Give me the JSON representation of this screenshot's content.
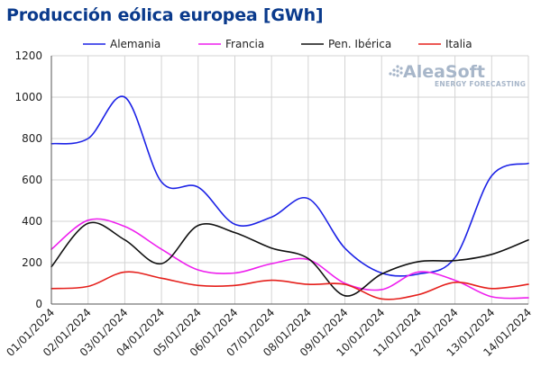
{
  "chart_data": {
    "type": "line",
    "title": "Producción eólica europea [GWh]",
    "xlabel": "",
    "ylabel": "",
    "ylim": [
      0,
      1200
    ],
    "yticks": [
      0,
      200,
      400,
      600,
      800,
      1000,
      1200
    ],
    "grid": true,
    "legend_position": "top",
    "categories": [
      "01/01/2024",
      "02/01/2024",
      "03/01/2024",
      "04/01/2024",
      "05/01/2024",
      "06/01/2024",
      "07/01/2024",
      "08/01/2024",
      "09/01/2024",
      "10/01/2024",
      "11/01/2024",
      "12/01/2024",
      "13/01/2024",
      "14/01/2024"
    ],
    "series": [
      {
        "name": "Alemania",
        "color": "#1c22e6",
        "values": [
          775,
          800,
          1000,
          590,
          565,
          385,
          420,
          510,
          270,
          150,
          145,
          225,
          620,
          680
        ]
      },
      {
        "name": "Francia",
        "color": "#ee1fee",
        "values": [
          265,
          405,
          375,
          265,
          165,
          150,
          195,
          215,
          100,
          70,
          155,
          115,
          35,
          30
        ]
      },
      {
        "name": "Pen. Ibérica",
        "color": "#111111",
        "values": [
          180,
          390,
          310,
          195,
          380,
          345,
          270,
          220,
          40,
          145,
          205,
          210,
          240,
          310
        ]
      },
      {
        "name": "Italia",
        "color": "#e5201c",
        "values": [
          75,
          85,
          155,
          125,
          90,
          90,
          115,
          95,
          95,
          25,
          45,
          105,
          75,
          95
        ]
      }
    ]
  },
  "logo": {
    "name": "AleaSoft",
    "tagline": "ENERGY FORECASTING"
  }
}
